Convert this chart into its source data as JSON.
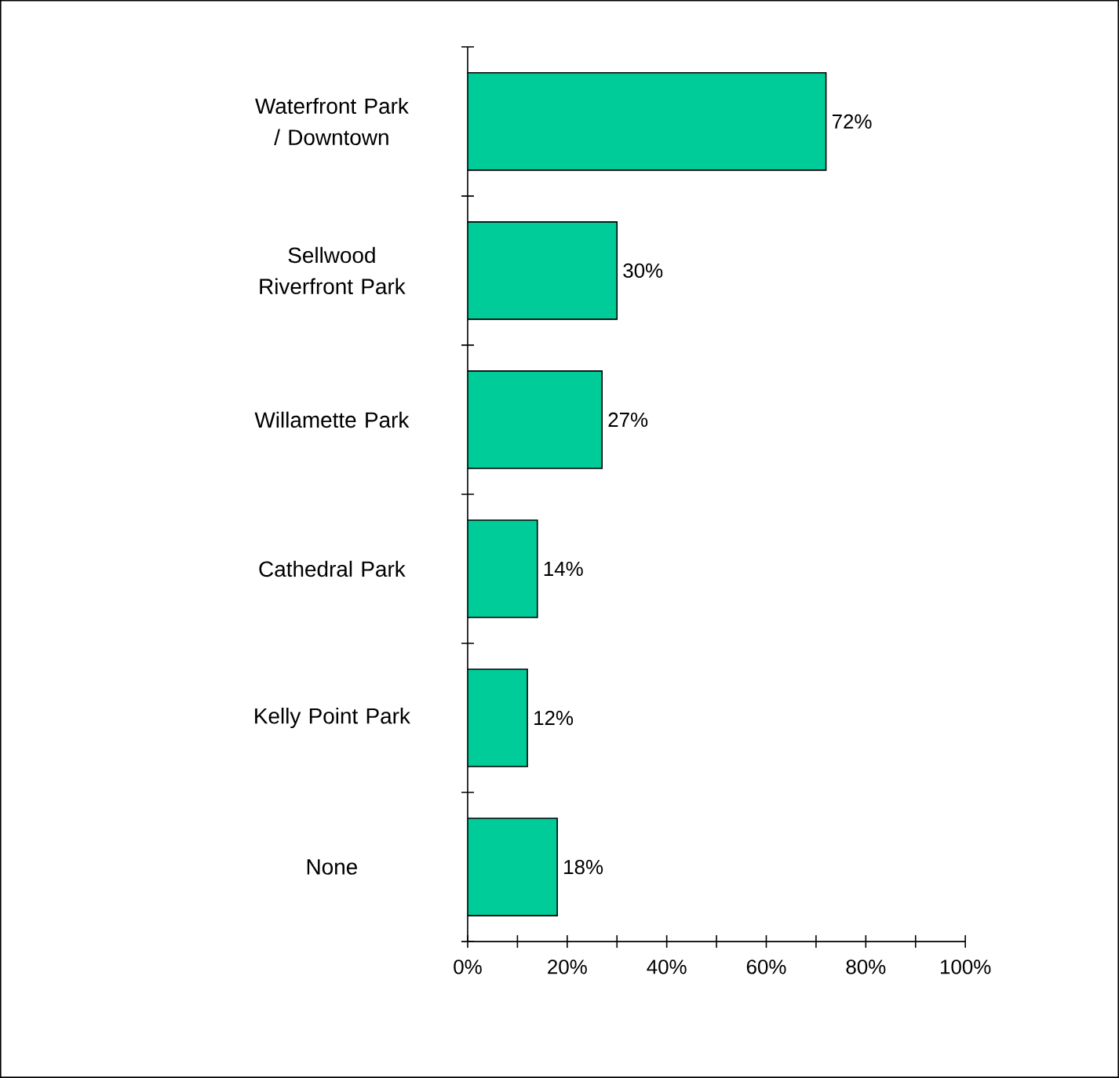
{
  "chart_data": {
    "type": "bar",
    "orientation": "horizontal",
    "categories": [
      "Waterfront Park / Downtown",
      "Sellwood Riverfront Park",
      "Willamette Park",
      "Cathedral Park",
      "Kelly Point Park",
      "None"
    ],
    "values": [
      72,
      30,
      27,
      14,
      12,
      18
    ],
    "value_labels": [
      "72%",
      "30%",
      "27%",
      "14%",
      "12%",
      "18%"
    ],
    "color": "#00cc99",
    "xlim": [
      0,
      100
    ],
    "xticks": [
      {
        "value": 0,
        "label": "0%"
      },
      {
        "value": 20,
        "label": "20%"
      },
      {
        "value": 40,
        "label": "40%"
      },
      {
        "value": 60,
        "label": "60%"
      },
      {
        "value": 80,
        "label": "80%"
      },
      {
        "value": 100,
        "label": "100%"
      }
    ],
    "grid": false
  }
}
